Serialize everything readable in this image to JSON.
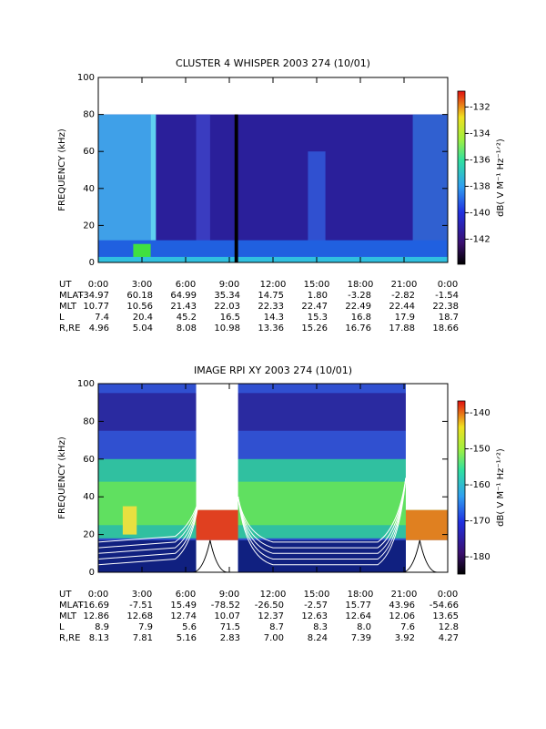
{
  "chart_data": [
    {
      "type": "spectrogram",
      "title": "CLUSTER 4 WHISPER 2003 274 (10/01)",
      "ylabel": "FREQUENCY (kHz)",
      "ylim": [
        0,
        100
      ],
      "yticks": [
        0,
        20,
        40,
        60,
        80,
        100
      ],
      "xlim": [
        0,
        24
      ],
      "xticks": [
        {
          "value": 0,
          "label": "0:00"
        },
        {
          "value": 3,
          "label": "3:00"
        },
        {
          "value": 6,
          "label": "6:00"
        },
        {
          "value": 9,
          "label": "9:00"
        },
        {
          "value": 12,
          "label": "12:00"
        },
        {
          "value": 15,
          "label": "15:00"
        },
        {
          "value": 18,
          "label": "18:00"
        },
        {
          "value": 21,
          "label": "21:00"
        },
        {
          "value": 24,
          "label": "0:00"
        }
      ],
      "zlim": [
        -143.9,
        -130.8
      ],
      "zticks": [
        -142,
        -140,
        -138,
        -136,
        -134,
        -132
      ],
      "zlabel": "dB( V M⁻¹ Hz⁻¹ᐟ²)",
      "row_labels": [
        "UT",
        "MLAT",
        "MLT",
        "L",
        "R,RE"
      ],
      "rows": [
        [
          "-34.97",
          "60.18",
          "64.99",
          "35.34",
          "14.75",
          "1.80",
          "-3.28",
          "-2.82",
          "-1.54"
        ],
        [
          "10.77",
          "10.56",
          "21.43",
          "22.03",
          "22.33",
          "22.47",
          "22.49",
          "22.44",
          "22.38"
        ],
        [
          "7.4",
          "20.4",
          "45.2",
          "16.5",
          "14.3",
          "15.3",
          "16.8",
          "17.9",
          "18.7"
        ],
        [
          "4.96",
          "5.04",
          "8.08",
          "10.98",
          "13.36",
          "15.26",
          "16.76",
          "17.88",
          "18.66"
        ]
      ]
    },
    {
      "type": "spectrogram",
      "title": "IMAGE RPI XY 2003 274 (10/01)",
      "ylabel": "FREQUENCY (kHz)",
      "ylim": [
        0,
        100
      ],
      "yticks": [
        0,
        20,
        40,
        60,
        80,
        100
      ],
      "xlim": [
        0,
        24
      ],
      "xticks": [
        {
          "value": 0,
          "label": "0:00"
        },
        {
          "value": 3,
          "label": "3:00"
        },
        {
          "value": 6,
          "label": "6:00"
        },
        {
          "value": 9,
          "label": "9:00"
        },
        {
          "value": 12,
          "label": "12:00"
        },
        {
          "value": 15,
          "label": "15:00"
        },
        {
          "value": 18,
          "label": "18:00"
        },
        {
          "value": 21,
          "label": "21:00"
        },
        {
          "value": 24,
          "label": "0:00"
        }
      ],
      "zlim": [
        -184.8,
        -136.7
      ],
      "zticks": [
        -180,
        -170,
        -160,
        -150,
        -140
      ],
      "zlabel": "dB( V M⁻¹ Hz⁻¹ᐟ²)",
      "row_labels": [
        "UT",
        "MLAT",
        "MLT",
        "L",
        "R,RE"
      ],
      "rows": [
        [
          "-16.69",
          "-7.51",
          "15.49",
          "-78.52",
          "-26.50",
          "-2.57",
          "15.77",
          "43.96",
          "-54.66"
        ],
        [
          "12.86",
          "12.68",
          "12.74",
          "10.07",
          "12.37",
          "12.63",
          "12.64",
          "12.06",
          "13.65"
        ],
        [
          "8.9",
          "7.9",
          "5.6",
          "71.5",
          "8.7",
          "8.3",
          "8.0",
          "7.6",
          "12.8"
        ],
        [
          "8.13",
          "7.81",
          "5.16",
          "2.83",
          "7.00",
          "8.24",
          "7.39",
          "3.92",
          "4.27"
        ]
      ]
    }
  ]
}
